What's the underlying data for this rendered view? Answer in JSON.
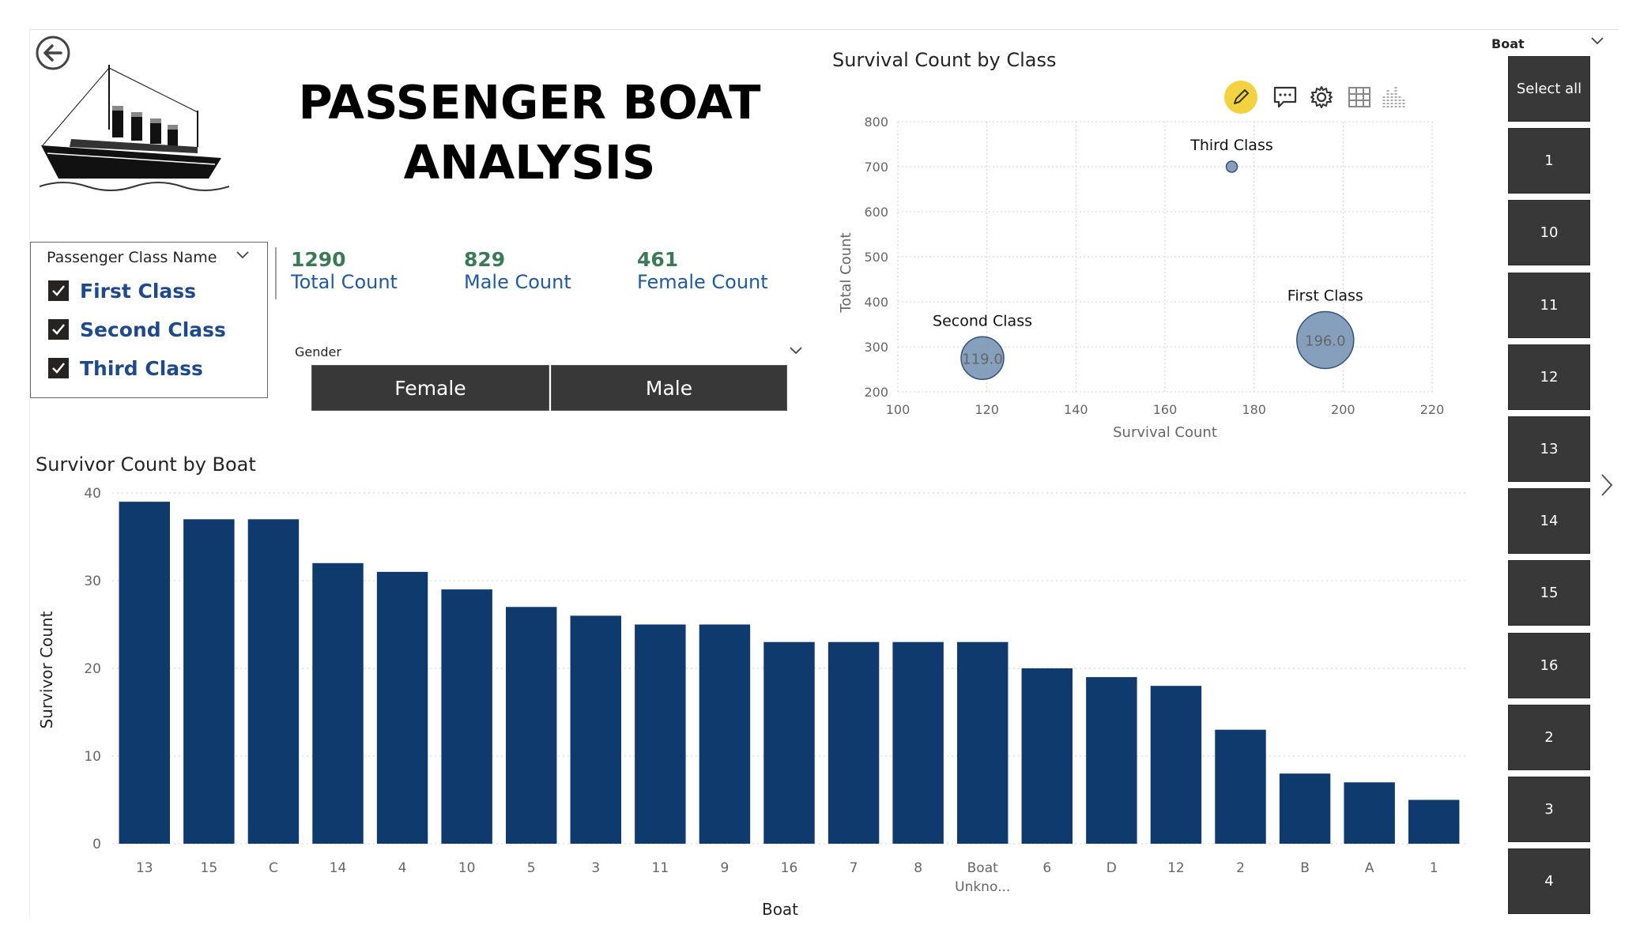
{
  "report": {
    "title_line1": "PASSENGER BOAT",
    "title_line2": "ANALYSIS"
  },
  "class_slicer": {
    "header": "Passenger Class Name",
    "items": [
      {
        "label": "First Class",
        "checked": true
      },
      {
        "label": "Second Class",
        "checked": true
      },
      {
        "label": "Third Class",
        "checked": true
      }
    ]
  },
  "kpis": [
    {
      "value": "1290",
      "label": "Total Count"
    },
    {
      "value": "829",
      "label": "Male Count"
    },
    {
      "value": "461",
      "label": "Female Count"
    }
  ],
  "gender_slicer": {
    "header": "Gender",
    "options": [
      "Female",
      "Male"
    ]
  },
  "boat_slicer": {
    "header": "Boat",
    "tiles": [
      "Select all",
      "1",
      "10",
      "11",
      "12",
      "13",
      "14",
      "15",
      "16",
      "2",
      "3",
      "4"
    ]
  },
  "colors": {
    "bar": "#0f3a6e",
    "bubble": "#7a95b5",
    "tile": "#383838",
    "kpi_value": "#3b7a57",
    "kpi_label": "#1f5a9e",
    "class_label": "#1e4a8c",
    "edit_icon_bg": "#f2d33f"
  },
  "visual_header_icons": [
    "edit-icon",
    "comment-icon",
    "settings-icon",
    "table-icon",
    "chart-icon"
  ],
  "chart_data": [
    {
      "type": "scatter",
      "title": "Survival Count by Class",
      "xlabel": "Survival Count",
      "ylabel": "Total Count",
      "xlim": [
        100,
        220
      ],
      "ylim": [
        200,
        800
      ],
      "xticks": [
        100,
        120,
        140,
        160,
        180,
        200,
        220
      ],
      "yticks": [
        200,
        300,
        400,
        500,
        600,
        700,
        800
      ],
      "grid": true,
      "points": [
        {
          "label": "Third Class",
          "x": 175,
          "y": 700,
          "size_label": ""
        },
        {
          "label": "Second Class",
          "x": 119,
          "y": 275,
          "size_label": "119.0"
        },
        {
          "label": "First Class",
          "x": 196,
          "y": 315,
          "size_label": "196.0"
        }
      ]
    },
    {
      "type": "bar",
      "title": "Survivor Count by Boat",
      "xlabel": "Boat",
      "ylabel": "Survivor Count",
      "ylim": [
        0,
        40
      ],
      "yticks": [
        0,
        10,
        20,
        30,
        40
      ],
      "grid": true,
      "categories": [
        "13",
        "15",
        "C",
        "14",
        "4",
        "10",
        "5",
        "3",
        "11",
        "9",
        "16",
        "7",
        "8",
        "Boat Unkno...",
        "6",
        "D",
        "12",
        "2",
        "B",
        "A",
        "1"
      ],
      "values": [
        39,
        37,
        37,
        32,
        31,
        29,
        27,
        26,
        25,
        25,
        23,
        23,
        23,
        23,
        20,
        19,
        18,
        13,
        8,
        7,
        5
      ]
    }
  ]
}
